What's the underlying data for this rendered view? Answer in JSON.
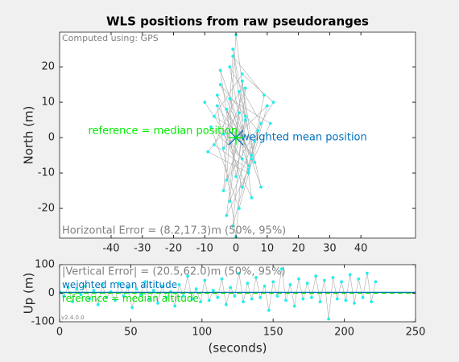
{
  "chart_data": [
    {
      "type": "line",
      "title": "WLS positions from raw pseudoranges",
      "y_label": "North (m)",
      "note": "Computed using: GPS",
      "error_text": "Horizontal Error = (8.2,17.3)m (50%, 95%)",
      "x": [
        0,
        -3,
        5,
        -6,
        2,
        8,
        -2,
        4,
        -8,
        1,
        10,
        -4,
        3,
        -1,
        6,
        -7,
        2,
        12,
        -3,
        0,
        5,
        -5,
        7,
        -2,
        1,
        -9,
        4,
        9,
        -1,
        -4,
        3,
        0,
        -6,
        6,
        2,
        -3,
        11,
        -2,
        4,
        -7,
        1,
        8,
        -5,
        0,
        3,
        -1,
        5,
        -4,
        2,
        -10
      ],
      "values": [
        0,
        8,
        -5,
        12,
        -14,
        4,
        20,
        -8,
        3,
        -20,
        9,
        -3,
        14,
        -25,
        -1,
        6,
        18,
        10,
        -12,
        29,
        -6,
        15,
        2,
        -18,
        7,
        -4,
        -10,
        12,
        23,
        -15,
        5,
        -28,
        9,
        -7,
        16,
        -22,
        4,
        11,
        -9,
        -2,
        13,
        -14,
        19,
        -11,
        6,
        25,
        -17,
        1,
        -6,
        10
      ],
      "color": "#22eeee",
      "line_color": "#aaaaaa",
      "xlim": [
        -56.5,
        57.5
      ],
      "ylim": [
        -28.4,
        29.8
      ],
      "xticks": [
        -40,
        -30,
        -20,
        -10,
        0,
        10,
        20,
        30,
        40
      ],
      "yticks": [
        -20,
        -10,
        0,
        10,
        20
      ],
      "markers": [
        {
          "label": "weighted mean position",
          "x": 0,
          "y": 0,
          "color": "#0072bd"
        },
        {
          "label": "reference = median position",
          "x": 0,
          "y": 0,
          "color": "#00ee00"
        }
      ]
    },
    {
      "type": "line",
      "y_label": "Up (m)",
      "x_label": "(seconds)",
      "error_text": "|Vertical Error| = (20.5,62.0)m (50%, 95%)",
      "version": "v2.4.0.0",
      "x": [
        0,
        3,
        6,
        9,
        12,
        15,
        18,
        21,
        24,
        27,
        30,
        33,
        36,
        39,
        42,
        45,
        48,
        51,
        54,
        57,
        60,
        63,
        66,
        69,
        72,
        75,
        78,
        81,
        84,
        87,
        90,
        93,
        96,
        99,
        102,
        105,
        108,
        111,
        114,
        117,
        120,
        123,
        126,
        129,
        132,
        135,
        138,
        141,
        144,
        147,
        150,
        153,
        156,
        159,
        162,
        165,
        168,
        171,
        174,
        177,
        180,
        183,
        186,
        189,
        192,
        195,
        198,
        201,
        204,
        207,
        210,
        213,
        216,
        219,
        222
      ],
      "values": [
        5,
        -10,
        20,
        -30,
        15,
        -5,
        25,
        -20,
        10,
        -40,
        30,
        -15,
        5,
        -25,
        35,
        -10,
        20,
        -50,
        15,
        -5,
        40,
        -20,
        10,
        -35,
        25,
        -15,
        5,
        -45,
        30,
        -10,
        60,
        -20,
        15,
        -30,
        45,
        -25,
        10,
        -15,
        50,
        -40,
        20,
        -10,
        70,
        -30,
        35,
        -20,
        55,
        -15,
        25,
        -60,
        40,
        -10,
        85,
        -25,
        30,
        -45,
        50,
        -20,
        35,
        -15,
        60,
        -30,
        45,
        -90,
        55,
        -20,
        40,
        -25,
        65,
        -35,
        50,
        -15,
        70,
        -30,
        40
      ],
      "color": "#22eeee",
      "line_color": "#aaaaaa",
      "xlim": [
        0,
        250
      ],
      "ylim": [
        -100,
        100
      ],
      "xticks": [
        0,
        50,
        100,
        150,
        200,
        250
      ],
      "yticks": [
        -100,
        0,
        100
      ],
      "reference_lines": [
        {
          "label": "weighted mean altitude",
          "value": 3,
          "color": "#0072bd",
          "dashed": false
        },
        {
          "label": "reference = median altitude",
          "value": 0,
          "color": "#00dd00",
          "dashed": true
        }
      ]
    }
  ]
}
